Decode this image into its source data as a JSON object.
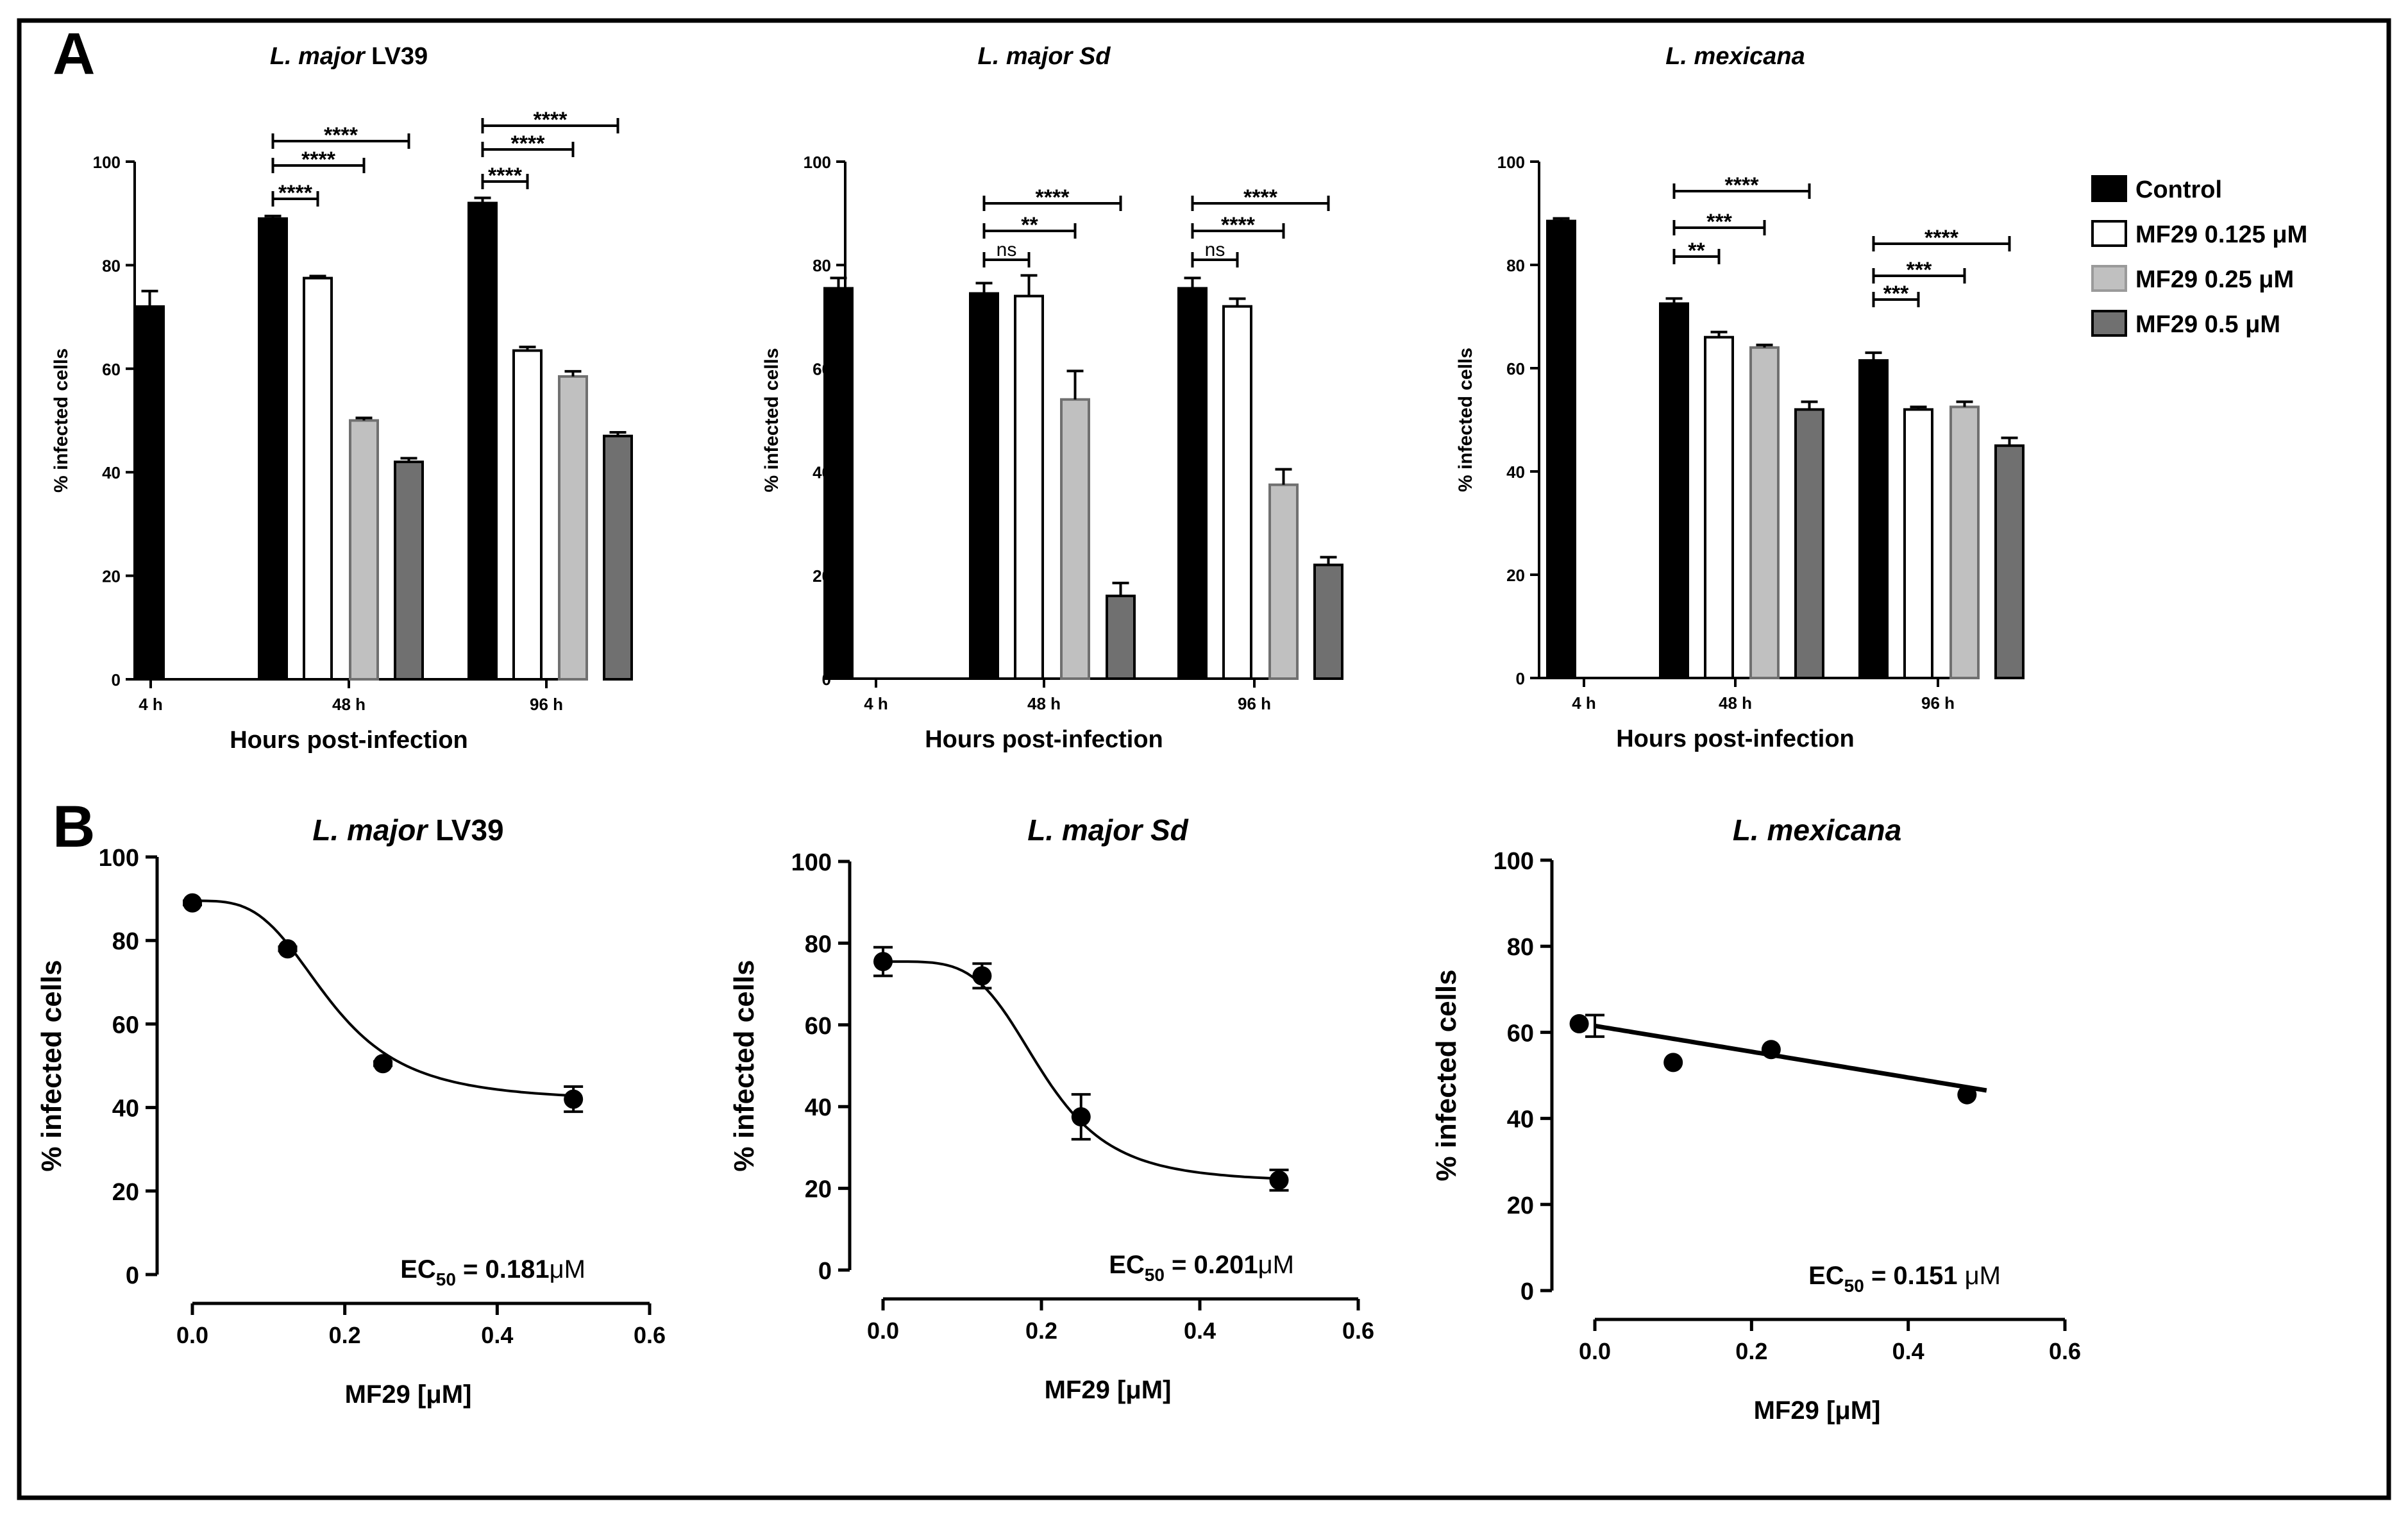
{
  "panel_labels": [
    "A",
    "B"
  ],
  "legend": {
    "items": [
      {
        "label": "Control",
        "fill": "#000000"
      },
      {
        "label": "MF29 0.125 μM",
        "fill": "#ffffff"
      },
      {
        "label": "MF29 0.25 μM",
        "fill": "#c0c0c0"
      },
      {
        "label": "MF29 0.5 μM",
        "fill": "#707070"
      }
    ]
  },
  "chart_data": [
    {
      "type": "bar",
      "panel": "A",
      "title_italic": "L. major",
      "title_rest": " LV39",
      "xlabel": "Hours post-infection",
      "ylabel": "% infected cells",
      "ylim": [
        0,
        100
      ],
      "yticks": [
        0,
        20,
        40,
        60,
        80,
        100
      ],
      "categories": [
        "4 h",
        "48 h",
        "96 h"
      ],
      "series": [
        {
          "name": "Control",
          "values": [
            72,
            89,
            92
          ],
          "errors": [
            3,
            0.5,
            1
          ]
        },
        {
          "name": "MF29 0.125 μM",
          "values": [
            null,
            77.5,
            63.5
          ],
          "errors": [
            null,
            0.4,
            0.7
          ]
        },
        {
          "name": "MF29 0.25 μM",
          "values": [
            null,
            50,
            58.5
          ],
          "errors": [
            null,
            0.5,
            1
          ]
        },
        {
          "name": "MF29 0.5 μM",
          "values": [
            null,
            42,
            47
          ],
          "errors": [
            null,
            0.7,
            0.7
          ]
        }
      ],
      "significance": [
        {
          "group": 1,
          "to": 1,
          "label": "****"
        },
        {
          "group": 1,
          "to": 2,
          "label": "****"
        },
        {
          "group": 1,
          "to": 3,
          "label": "****"
        },
        {
          "group": 2,
          "to": 1,
          "label": "****"
        },
        {
          "group": 2,
          "to": 2,
          "label": "****"
        },
        {
          "group": 2,
          "to": 3,
          "label": "****"
        }
      ]
    },
    {
      "type": "bar",
      "panel": "A",
      "title_italic": "L. major Sd",
      "title_rest": "",
      "xlabel": "Hours post-infection",
      "ylabel": "% infected cells",
      "ylim": [
        0,
        100
      ],
      "yticks": [
        0,
        20,
        40,
        60,
        80,
        100
      ],
      "categories": [
        "4 h",
        "48 h",
        "96 h"
      ],
      "series": [
        {
          "name": "Control",
          "values": [
            75.5,
            74.5,
            75.5
          ],
          "errors": [
            2,
            2,
            2
          ]
        },
        {
          "name": "MF29 0.125 μM",
          "values": [
            null,
            74,
            72
          ],
          "errors": [
            null,
            4,
            1.5
          ]
        },
        {
          "name": "MF29 0.25 μM",
          "values": [
            null,
            54,
            37.5
          ],
          "errors": [
            null,
            5.5,
            3
          ]
        },
        {
          "name": "MF29 0.5 μM",
          "values": [
            null,
            16,
            22
          ],
          "errors": [
            null,
            2.5,
            1.5
          ]
        }
      ],
      "significance": [
        {
          "group": 1,
          "to": 1,
          "label": "ns"
        },
        {
          "group": 1,
          "to": 2,
          "label": "**"
        },
        {
          "group": 1,
          "to": 3,
          "label": "****"
        },
        {
          "group": 2,
          "to": 1,
          "label": "ns"
        },
        {
          "group": 2,
          "to": 2,
          "label": "****"
        },
        {
          "group": 2,
          "to": 3,
          "label": "****"
        }
      ]
    },
    {
      "type": "bar",
      "panel": "A",
      "title_italic": "L. mexicana",
      "title_rest": "",
      "xlabel": "Hours post-infection",
      "ylabel": "% infected cells",
      "ylim": [
        0,
        100
      ],
      "yticks": [
        0,
        20,
        40,
        60,
        80,
        100
      ],
      "categories": [
        "4 h",
        "48 h",
        "96 h"
      ],
      "series": [
        {
          "name": "Control",
          "values": [
            88.5,
            72.5,
            61.5
          ],
          "errors": [
            0.5,
            1,
            1.5
          ]
        },
        {
          "name": "MF29 0.125 μM",
          "values": [
            null,
            66,
            52
          ],
          "errors": [
            null,
            1,
            0.5
          ]
        },
        {
          "name": "MF29 0.25 μM",
          "values": [
            null,
            64,
            52.5
          ],
          "errors": [
            null,
            0.5,
            1
          ]
        },
        {
          "name": "MF29 0.5 μM",
          "values": [
            null,
            52,
            45
          ],
          "errors": [
            null,
            1.5,
            1.5
          ]
        }
      ],
      "significance": [
        {
          "group": 1,
          "to": 1,
          "label": "**"
        },
        {
          "group": 1,
          "to": 2,
          "label": "***"
        },
        {
          "group": 1,
          "to": 3,
          "label": "****"
        },
        {
          "group": 2,
          "to": 1,
          "label": "***"
        },
        {
          "group": 2,
          "to": 2,
          "label": "***"
        },
        {
          "group": 2,
          "to": 3,
          "label": "****"
        }
      ]
    },
    {
      "type": "scatter",
      "panel": "B",
      "title_italic": "L. major",
      "title_rest": "  LV39",
      "xlabel": "MF29 [μM]",
      "ylabel": "% infected cells",
      "xlim": [
        0,
        0.6
      ],
      "ylim": [
        0,
        100
      ],
      "xticks": [
        0.0,
        0.2,
        0.4,
        0.6
      ],
      "xtick_labels": [
        "0.0",
        "0.2",
        "0.4",
        "0.6"
      ],
      "yticks": [
        0,
        20,
        40,
        60,
        80,
        100
      ],
      "points": [
        {
          "x": 0.0,
          "y": 89,
          "err": 0.5
        },
        {
          "x": 0.125,
          "y": 78,
          "err": 0.5
        },
        {
          "x": 0.25,
          "y": 50.5,
          "err": 0.5
        },
        {
          "x": 0.5,
          "y": 42,
          "err": 3
        }
      ],
      "fit": {
        "model": "sigmoid",
        "top": 89.5,
        "bottom": 41.5,
        "ec50": 0.181,
        "hill": 3.5,
        "x_range": [
          0,
          0.5
        ]
      },
      "ec50_prefix": "EC",
      "ec50_sub": "50",
      "ec50_value": " = 0.181",
      "ec50_unit": "μM"
    },
    {
      "type": "scatter",
      "panel": "B",
      "title_italic": "L. major  Sd",
      "title_rest": "",
      "xlabel": "MF29 [μM]",
      "ylabel": "% infected cells",
      "xlim": [
        0,
        0.6
      ],
      "ylim": [
        0,
        100
      ],
      "xticks": [
        0.0,
        0.2,
        0.4,
        0.6
      ],
      "xtick_labels": [
        "0.0",
        "0.2",
        "0.4",
        "0.6"
      ],
      "yticks": [
        0,
        20,
        40,
        60,
        80,
        100
      ],
      "points": [
        {
          "x": 0.0,
          "y": 75.5,
          "err": 3.5
        },
        {
          "x": 0.125,
          "y": 72,
          "err": 3
        },
        {
          "x": 0.25,
          "y": 37.5,
          "err": 5.5
        },
        {
          "x": 0.5,
          "y": 22,
          "err": 2.5
        }
      ],
      "fit": {
        "model": "sigmoid",
        "top": 75.5,
        "bottom": 21.5,
        "ec50": 0.201,
        "hill": 4.5,
        "x_range": [
          0,
          0.5
        ]
      },
      "ec50_prefix": "EC",
      "ec50_sub": "50",
      "ec50_value": " = 0.201",
      "ec50_unit": "μM"
    },
    {
      "type": "scatter",
      "panel": "B",
      "title_italic": "L. mexicana",
      "title_rest": "",
      "xlabel": "MF29 [μM]",
      "ylabel": "% infected cells",
      "xlim": [
        -0.03,
        0.6
      ],
      "ylim": [
        0,
        100
      ],
      "xticks": [
        0.0,
        0.2,
        0.4,
        0.6
      ],
      "xtick_labels": [
        "0.0",
        "0.2",
        "0.4",
        "0.6"
      ],
      "yticks": [
        0,
        20,
        40,
        60,
        80,
        100
      ],
      "points": [
        {
          "x": -0.02,
          "y": 62,
          "err": 0
        },
        {
          "x": 0.0,
          "y": 61.5,
          "err": 2.5
        },
        {
          "x": 0.1,
          "y": 53,
          "err": 0
        },
        {
          "x": 0.225,
          "y": 56,
          "err": 0
        },
        {
          "x": 0.475,
          "y": 45.5,
          "err": 0
        }
      ],
      "fit": {
        "model": "linear",
        "y0": 61.5,
        "y1": 46.5,
        "x_range": [
          0,
          0.5
        ]
      },
      "ec50_prefix": "EC",
      "ec50_sub": "50",
      "ec50_value": " = 0.151 ",
      "ec50_unit": "μM"
    }
  ]
}
